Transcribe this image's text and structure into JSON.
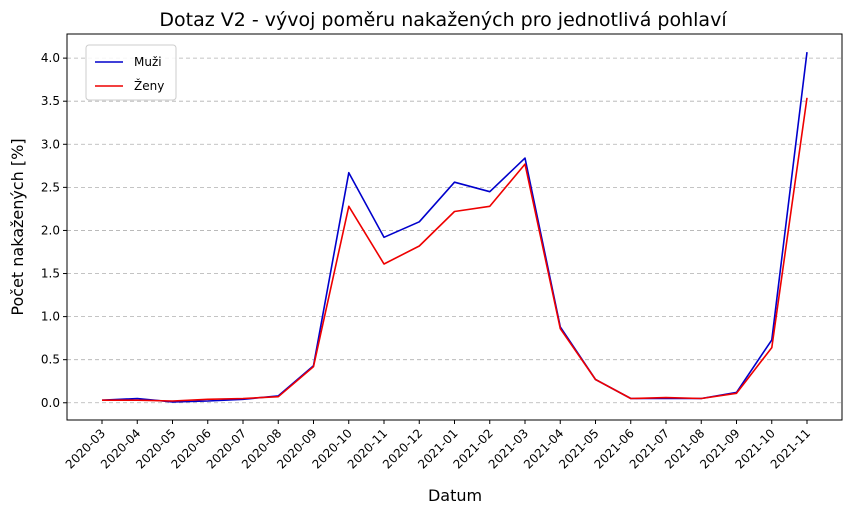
{
  "chart_data": {
    "type": "line",
    "title": "Dotaz V2 - vývoj poměru nakažených pro jednotlivá pohlaví",
    "xlabel": "Datum",
    "ylabel": "Počet nakažených [%]",
    "categories": [
      "2020-03",
      "2020-04",
      "2020-05",
      "2020-06",
      "2020-07",
      "2020-08",
      "2020-09",
      "2020-10",
      "2020-11",
      "2020-12",
      "2021-01",
      "2021-02",
      "2021-03",
      "2021-04",
      "2021-05",
      "2021-06",
      "2021-07",
      "2021-08",
      "2021-09",
      "2021-10",
      "2021-11"
    ],
    "yticks": [
      "0.0",
      "0.5",
      "1.0",
      "1.5",
      "2.0",
      "2.5",
      "3.0",
      "3.5",
      "4.0"
    ],
    "ylim": [
      -0.2,
      4.28
    ],
    "grid": "y-dashed",
    "legend_position": "top-left",
    "series": [
      {
        "name": "Muži",
        "color": "#0000cc",
        "values": [
          0.03,
          0.05,
          0.01,
          0.02,
          0.04,
          0.08,
          0.43,
          2.67,
          1.92,
          2.1,
          2.56,
          2.45,
          2.84,
          0.88,
          0.27,
          0.05,
          0.05,
          0.05,
          0.12,
          0.73,
          4.07
        ]
      },
      {
        "name": "Ženy",
        "color": "#ee0000",
        "values": [
          0.03,
          0.03,
          0.02,
          0.04,
          0.05,
          0.07,
          0.42,
          2.28,
          1.61,
          1.82,
          2.22,
          2.28,
          2.77,
          0.86,
          0.27,
          0.05,
          0.06,
          0.05,
          0.11,
          0.64,
          3.54
        ]
      }
    ]
  }
}
